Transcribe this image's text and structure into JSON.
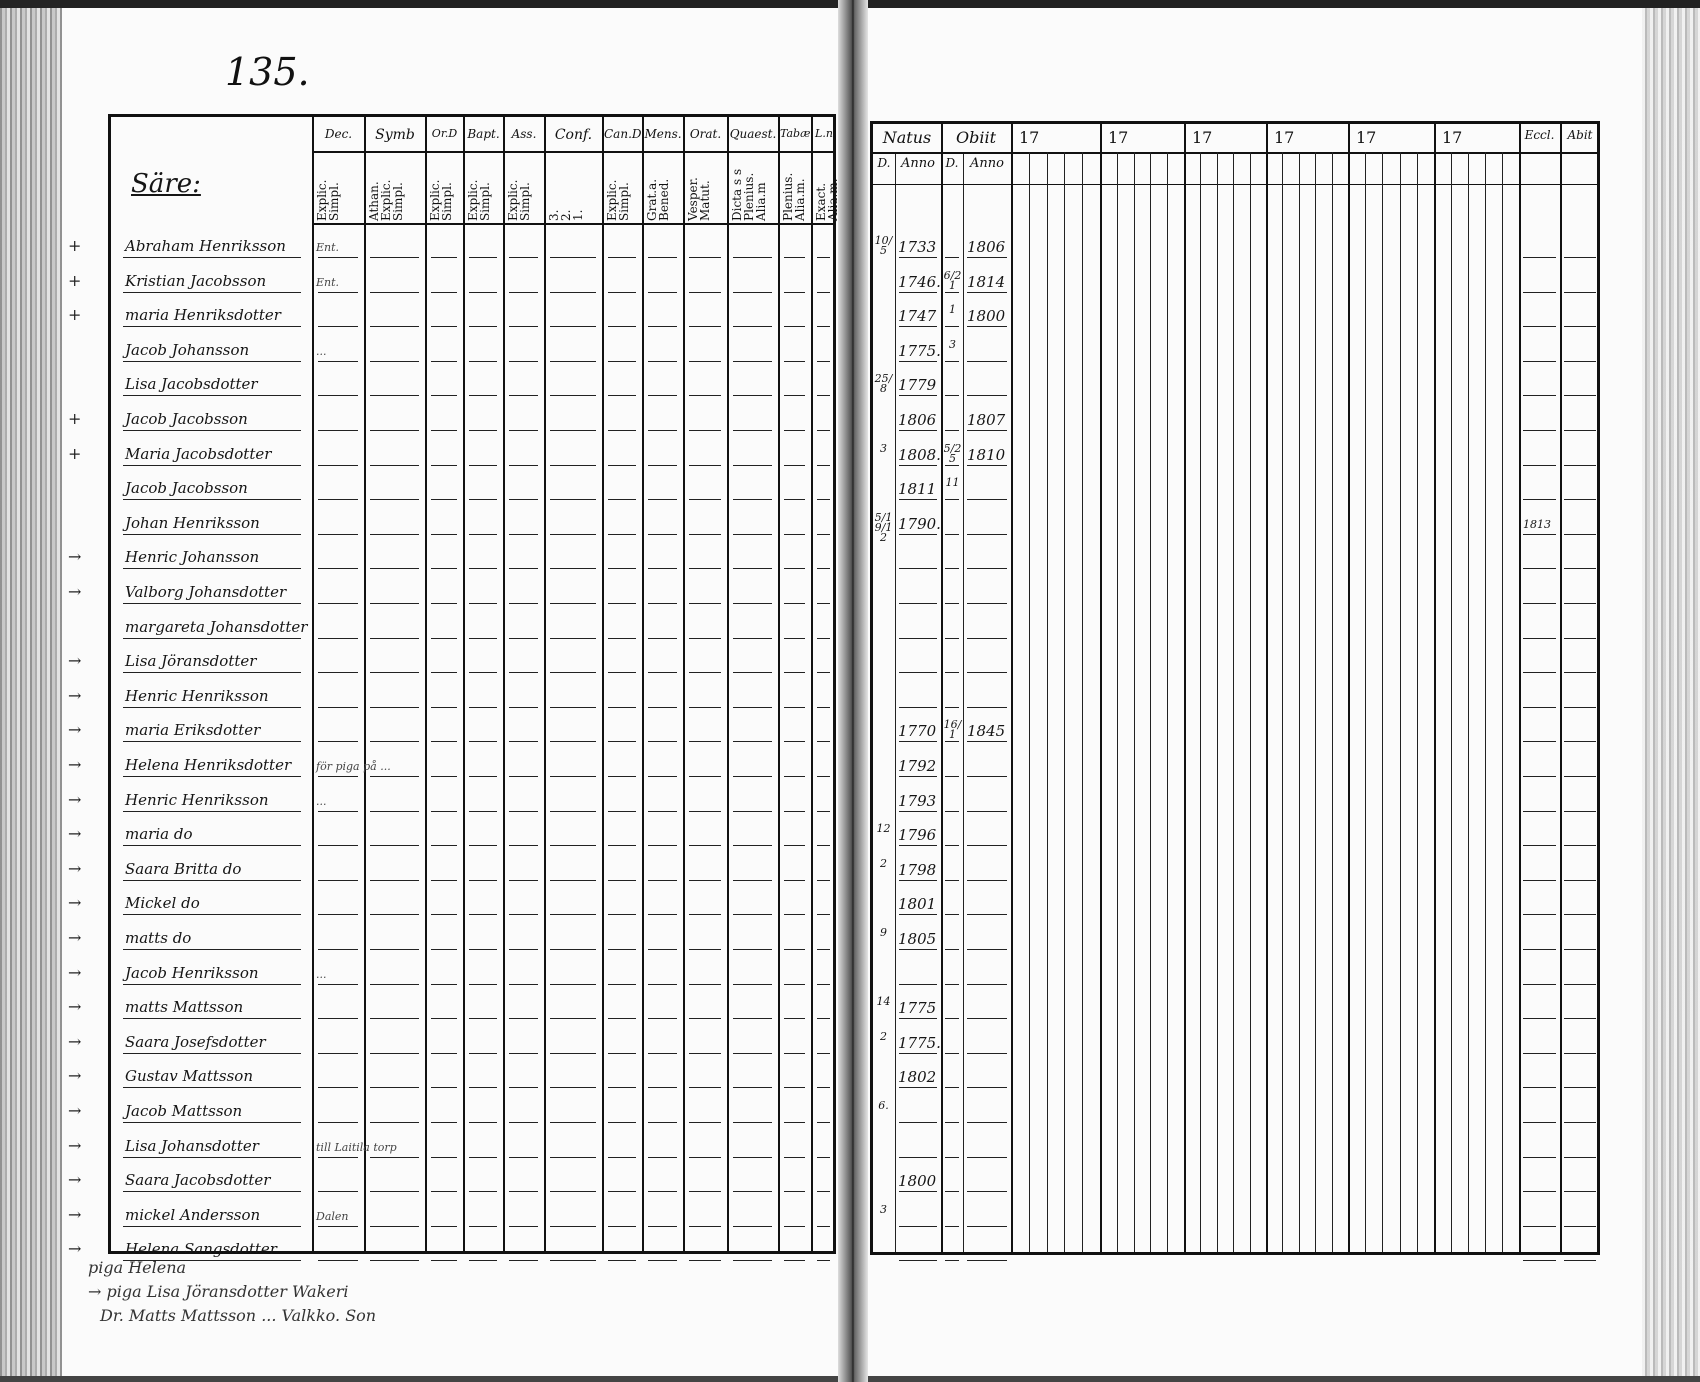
{
  "page_number": "135.",
  "left_page": {
    "name_header": "Säre:",
    "columns": [
      {
        "top": "Dec.",
        "sub": "Explic.\nSimpl."
      },
      {
        "top": "Symb",
        "sub": "Athan.\nExplic.\nSimpl."
      },
      {
        "top": "Or.D",
        "sub": "Explic.\nSimpl."
      },
      {
        "top": "Bapt.",
        "sub": "Explic.\nSimpl."
      },
      {
        "top": "Ass.",
        "sub": "Explic.\nSimpl."
      },
      {
        "top": "Conf.",
        "sub": "3.\n2.\n1."
      },
      {
        "top": "Can.D",
        "sub": "Explic.\nSimpl."
      },
      {
        "top": "Mens.",
        "sub": "Grat.a.\nBened."
      },
      {
        "top": "Orat.",
        "sub": "Vesper.\nMatut."
      },
      {
        "top": "Quaest.",
        "sub": "Dicta s s\nPlenius.\nAlia.m"
      },
      {
        "top": "Tabæ",
        "sub": "Plenius.\nAlia.m."
      },
      {
        "top": "L.n",
        "sub": "Exact.\nAlia.m."
      }
    ],
    "rows": [
      {
        "mark": "+",
        "name": "Abraham Henriksson",
        "note": "Ent."
      },
      {
        "mark": "+",
        "name": "Kristian Jacobsson",
        "note": "Ent."
      },
      {
        "mark": "+",
        "name": "maria Henriksdotter",
        "note": ""
      },
      {
        "mark": "",
        "name": "Jacob Johansson",
        "note": "..."
      },
      {
        "mark": "",
        "name": "Lisa Jacobsdotter",
        "note": ""
      },
      {
        "mark": "+",
        "name": "Jacob Jacobsson",
        "note": ""
      },
      {
        "mark": "+",
        "name": "Maria Jacobsdotter",
        "note": ""
      },
      {
        "mark": "",
        "name": "Jacob Jacobsson",
        "note": ""
      },
      {
        "mark": "",
        "name": "Johan Henriksson",
        "note": ""
      },
      {
        "mark": "→",
        "name": "Henric Johansson",
        "note": ""
      },
      {
        "mark": "→",
        "name": "Valborg Johansdotter",
        "note": ""
      },
      {
        "mark": "",
        "name": "margareta Johansdotter",
        "note": ""
      },
      {
        "mark": "→",
        "name": "Lisa Jöransdotter",
        "note": ""
      },
      {
        "mark": "→",
        "name": "Henric Henriksson",
        "note": ""
      },
      {
        "mark": "→",
        "name": "maria Eriksdotter",
        "note": ""
      },
      {
        "mark": "→",
        "name": "Helena Henriksdotter",
        "note": "för piga på ..."
      },
      {
        "mark": "→",
        "name": "Henric Henriksson",
        "note": "..."
      },
      {
        "mark": "→",
        "name": "maria do",
        "note": ""
      },
      {
        "mark": "→",
        "name": "Saara Britta do",
        "note": ""
      },
      {
        "mark": "→",
        "name": "Mickel do",
        "note": ""
      },
      {
        "mark": "→",
        "name": "matts do",
        "note": ""
      },
      {
        "mark": "→",
        "name": "Jacob Henriksson",
        "note": "..."
      },
      {
        "mark": "→",
        "name": "matts Mattsson",
        "note": ""
      },
      {
        "mark": "→",
        "name": "Saara Josefsdotter",
        "note": ""
      },
      {
        "mark": "→",
        "name": "Gustav Mattsson",
        "note": ""
      },
      {
        "mark": "→",
        "name": "Jacob Mattsson",
        "note": ""
      },
      {
        "mark": "→",
        "name": "Lisa Johansdotter",
        "note": "till Laitila torp"
      },
      {
        "mark": "→",
        "name": "Saara Jacobsdotter",
        "note": ""
      },
      {
        "mark": "→",
        "name": "mickel Andersson",
        "note": "Dalen"
      },
      {
        "mark": "→",
        "name": "Helena Sangsdotter",
        "note": ""
      }
    ],
    "footer_notes": [
      "piga Helena",
      "→ piga Lisa Jöransdotter Wakeri",
      "Dr. Matts Mattsson ... Valkko. Son"
    ]
  },
  "right_page": {
    "headers": {
      "natus": "Natus",
      "obiit": "Obiit",
      "d": "D.",
      "anno": "Anno",
      "year_groups": [
        "17",
        "17",
        "17",
        "17",
        "17",
        "17"
      ],
      "eccl": "Eccl.",
      "abit": "Abit"
    },
    "rows": [
      {
        "natus_d": "10/5",
        "natus_anno": "1733",
        "obiit_d": "",
        "obiit_anno": "1806",
        "eccl": ""
      },
      {
        "natus_d": "",
        "natus_anno": "1746.",
        "obiit_d": "6/21",
        "obiit_anno": "1814",
        "eccl": ""
      },
      {
        "natus_d": "",
        "natus_anno": "1747",
        "obiit_d": "1",
        "obiit_anno": "1800",
        "eccl": ""
      },
      {
        "natus_d": "",
        "natus_anno": "1775.",
        "obiit_d": "3",
        "obiit_anno": "",
        "eccl": ""
      },
      {
        "natus_d": "25/8",
        "natus_anno": "1779",
        "obiit_d": "",
        "obiit_anno": "",
        "eccl": ""
      },
      {
        "natus_d": "",
        "natus_anno": "1806",
        "obiit_d": "",
        "obiit_anno": "1807",
        "eccl": ""
      },
      {
        "natus_d": "3",
        "natus_anno": "1808.",
        "obiit_d": "5/25",
        "obiit_anno": "1810",
        "eccl": ""
      },
      {
        "natus_d": "",
        "natus_anno": "1811",
        "obiit_d": "11",
        "obiit_anno": "",
        "eccl": ""
      },
      {
        "natus_d": "5/19/12",
        "natus_anno": "1790.",
        "obiit_d": "",
        "obiit_anno": "",
        "eccl": "1813"
      },
      {
        "natus_d": "",
        "natus_anno": "",
        "obiit_d": "",
        "obiit_anno": "",
        "eccl": ""
      },
      {
        "natus_d": "",
        "natus_anno": "",
        "obiit_d": "",
        "obiit_anno": "",
        "eccl": ""
      },
      {
        "natus_d": "",
        "natus_anno": "",
        "obiit_d": "",
        "obiit_anno": "",
        "eccl": ""
      },
      {
        "natus_d": "",
        "natus_anno": "",
        "obiit_d": "",
        "obiit_anno": "",
        "eccl": ""
      },
      {
        "natus_d": "",
        "natus_anno": "",
        "obiit_d": "",
        "obiit_anno": "",
        "eccl": ""
      },
      {
        "natus_d": "",
        "natus_anno": "1770",
        "obiit_d": "16/1",
        "obiit_anno": "1845",
        "eccl": ""
      },
      {
        "natus_d": "",
        "natus_anno": "1792",
        "obiit_d": "",
        "obiit_anno": "",
        "eccl": ""
      },
      {
        "natus_d": "",
        "natus_anno": "1793",
        "obiit_d": "",
        "obiit_anno": "",
        "eccl": ""
      },
      {
        "natus_d": "12",
        "natus_anno": "1796",
        "obiit_d": "",
        "obiit_anno": "",
        "eccl": ""
      },
      {
        "natus_d": "2",
        "natus_anno": "1798",
        "obiit_d": "",
        "obiit_anno": "",
        "eccl": ""
      },
      {
        "natus_d": "",
        "natus_anno": "1801",
        "obiit_d": "",
        "obiit_anno": "",
        "eccl": ""
      },
      {
        "natus_d": "9",
        "natus_anno": "1805",
        "obiit_d": "",
        "obiit_anno": "",
        "eccl": ""
      },
      {
        "natus_d": "",
        "natus_anno": "",
        "obiit_d": "",
        "obiit_anno": "",
        "eccl": ""
      },
      {
        "natus_d": "14",
        "natus_anno": "1775",
        "obiit_d": "",
        "obiit_anno": "",
        "eccl": ""
      },
      {
        "natus_d": "2",
        "natus_anno": "1775.",
        "obiit_d": "",
        "obiit_anno": "",
        "eccl": ""
      },
      {
        "natus_d": "",
        "natus_anno": "1802",
        "obiit_d": "",
        "obiit_anno": "",
        "eccl": ""
      },
      {
        "natus_d": "6.",
        "natus_anno": "",
        "obiit_d": "",
        "obiit_anno": "",
        "eccl": ""
      },
      {
        "natus_d": "",
        "natus_anno": "",
        "obiit_d": "",
        "obiit_anno": "",
        "eccl": ""
      },
      {
        "natus_d": "",
        "natus_anno": "1800",
        "obiit_d": "",
        "obiit_anno": "",
        "eccl": ""
      },
      {
        "natus_d": "3",
        "natus_anno": "",
        "obiit_d": "",
        "obiit_anno": "",
        "eccl": ""
      },
      {
        "natus_d": "",
        "natus_anno": "",
        "obiit_d": "",
        "obiit_anno": "",
        "eccl": ""
      }
    ]
  }
}
